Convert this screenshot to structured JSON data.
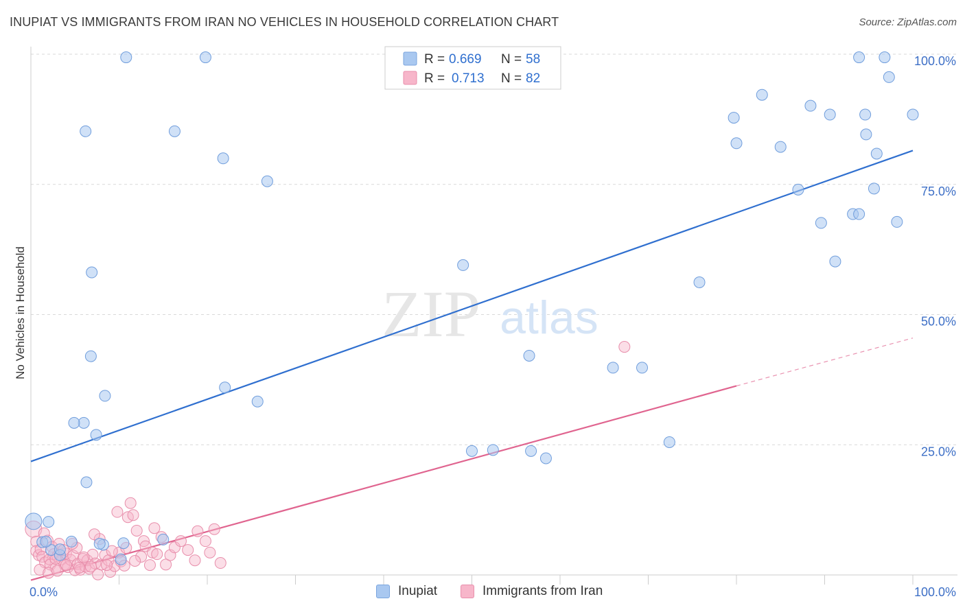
{
  "title": "INUPIAT VS IMMIGRANTS FROM IRAN NO VEHICLES IN HOUSEHOLD CORRELATION CHART",
  "source": "Source: ZipAtlas.com",
  "watermark": {
    "zip": "ZIP",
    "atlas": "atlas"
  },
  "colors": {
    "blue": "#2f6fcf",
    "blue_fill": "#a9c8f0",
    "pink": "#e0648f",
    "pink_fill": "#f7b6ca",
    "axis_label": "#3d6fc6",
    "grid": "#d8d8d8"
  },
  "legend_top": [
    {
      "r_label": "R =",
      "r_value": "0.669",
      "n_label": "N =",
      "n_value": "58"
    },
    {
      "r_label": "R =",
      "r_value": "0.713",
      "n_label": "N =",
      "n_value": "82"
    }
  ],
  "legend_bottom": [
    {
      "name": "Inupiat"
    },
    {
      "name": "Immigrants from Iran"
    }
  ],
  "chart_data": {
    "type": "scatter",
    "title": "INUPIAT VS IMMIGRANTS FROM IRAN NO VEHICLES IN HOUSEHOLD CORRELATION CHART",
    "xlabel": "",
    "ylabel": "No Vehicles in Household",
    "xlim": [
      0,
      100
    ],
    "ylim": [
      0,
      100
    ],
    "x_tick_labels": [
      "0.0%",
      "100.0%"
    ],
    "y_tick_labels": [
      "25.0%",
      "50.0%",
      "75.0%",
      "100.0%"
    ],
    "y_tick_values": [
      25,
      50,
      75,
      100
    ],
    "series": [
      {
        "name": "Inupiat",
        "r": 0.669,
        "n": 58,
        "trend": {
          "x0": 0,
          "y0": 21.8,
          "x1": 100,
          "y1": 81.5
        },
        "points": [
          [
            0.3,
            10.3
          ],
          [
            1.3,
            6.3
          ],
          [
            2.3,
            4.8
          ],
          [
            3.3,
            3.8
          ],
          [
            4.6,
            6.4
          ],
          [
            6.2,
            85.2
          ],
          [
            6.0,
            29.2
          ],
          [
            4.9,
            29.2
          ],
          [
            6.9,
            58.1
          ],
          [
            6.3,
            17.8
          ],
          [
            6.8,
            42.0
          ],
          [
            7.4,
            26.9
          ],
          [
            8.4,
            34.4
          ],
          [
            10.8,
            99.4
          ],
          [
            10.2,
            3.0
          ],
          [
            10.5,
            6.1
          ],
          [
            8.2,
            5.8
          ],
          [
            19.8,
            99.4
          ],
          [
            16.3,
            85.2
          ],
          [
            21.8,
            80.0
          ],
          [
            22.0,
            36.0
          ],
          [
            26.8,
            75.6
          ],
          [
            25.7,
            33.3
          ],
          [
            15.0,
            6.8
          ],
          [
            49.0,
            59.5
          ],
          [
            50.0,
            23.8
          ],
          [
            52.4,
            24.0
          ],
          [
            56.7,
            23.8
          ],
          [
            58.4,
            22.4
          ],
          [
            56.5,
            42.1
          ],
          [
            66.0,
            39.8
          ],
          [
            69.3,
            39.8
          ],
          [
            72.4,
            25.5
          ],
          [
            75.8,
            56.2
          ],
          [
            79.7,
            87.8
          ],
          [
            80.0,
            82.9
          ],
          [
            82.9,
            92.2
          ],
          [
            85.0,
            82.2
          ],
          [
            87.0,
            74.0
          ],
          [
            88.4,
            90.1
          ],
          [
            89.6,
            67.6
          ],
          [
            90.6,
            88.4
          ],
          [
            91.2,
            60.2
          ],
          [
            93.2,
            69.3
          ],
          [
            93.9,
            69.3
          ],
          [
            93.9,
            99.4
          ],
          [
            94.6,
            88.4
          ],
          [
            94.7,
            84.6
          ],
          [
            95.6,
            74.2
          ],
          [
            95.9,
            80.9
          ],
          [
            96.8,
            99.4
          ],
          [
            97.3,
            95.6
          ],
          [
            98.2,
            67.8
          ],
          [
            100.0,
            88.4
          ],
          [
            1.7,
            6.4
          ],
          [
            3.3,
            4.9
          ],
          [
            2.0,
            10.2
          ],
          [
            7.8,
            6.0
          ]
        ]
      },
      {
        "name": "Immigrants from Iran",
        "r": 0.713,
        "n": 82,
        "trend": {
          "x0": 0,
          "y0": -1.0,
          "x1": 80,
          "y1": 36.3
        },
        "trend_extension": {
          "x0": 80,
          "y0": 36.3,
          "x1": 100,
          "y1": 46.0
        },
        "points": [
          [
            0.3,
            8.8
          ],
          [
            0.6,
            6.4
          ],
          [
            0.6,
            4.6
          ],
          [
            0.9,
            3.8
          ],
          [
            1.1,
            4.9
          ],
          [
            1.3,
            3.5
          ],
          [
            1.6,
            2.4
          ],
          [
            1.9,
            6.6
          ],
          [
            2.1,
            3.0
          ],
          [
            2.2,
            2.0
          ],
          [
            2.4,
            5.4
          ],
          [
            2.6,
            4.0
          ],
          [
            2.8,
            1.3
          ],
          [
            3.0,
            3.6
          ],
          [
            3.2,
            6.0
          ],
          [
            3.5,
            3.0
          ],
          [
            3.8,
            2.0
          ],
          [
            4.0,
            4.1
          ],
          [
            4.2,
            1.5
          ],
          [
            4.5,
            2.9
          ],
          [
            4.8,
            3.7
          ],
          [
            5.0,
            0.9
          ],
          [
            5.2,
            5.2
          ],
          [
            5.3,
            2.1
          ],
          [
            5.6,
            1.0
          ],
          [
            5.9,
            3.1
          ],
          [
            6.2,
            1.6
          ],
          [
            6.4,
            2.8
          ],
          [
            6.6,
            1.2
          ],
          [
            7.0,
            3.9
          ],
          [
            7.3,
            2.2
          ],
          [
            7.6,
            0.1
          ],
          [
            7.8,
            6.9
          ],
          [
            8.0,
            2.0
          ],
          [
            8.4,
            3.8
          ],
          [
            8.8,
            2.8
          ],
          [
            9.0,
            0.6
          ],
          [
            9.5,
            1.7
          ],
          [
            9.8,
            12.1
          ],
          [
            10.0,
            4.3
          ],
          [
            10.2,
            2.6
          ],
          [
            10.6,
            1.8
          ],
          [
            11.0,
            11.1
          ],
          [
            11.3,
            13.8
          ],
          [
            11.6,
            11.5
          ],
          [
            12.0,
            8.5
          ],
          [
            12.5,
            3.5
          ],
          [
            12.8,
            6.5
          ],
          [
            13.0,
            5.5
          ],
          [
            13.8,
            4.3
          ],
          [
            14.3,
            4.0
          ],
          [
            14.8,
            7.3
          ],
          [
            15.3,
            2.0
          ],
          [
            15.8,
            3.8
          ],
          [
            16.3,
            5.3
          ],
          [
            17.0,
            6.5
          ],
          [
            17.8,
            4.8
          ],
          [
            18.6,
            2.8
          ],
          [
            18.9,
            8.4
          ],
          [
            19.8,
            6.5
          ],
          [
            20.3,
            4.3
          ],
          [
            20.8,
            8.8
          ],
          [
            21.5,
            2.3
          ],
          [
            1.0,
            1.0
          ],
          [
            2.0,
            0.4
          ],
          [
            3.0,
            0.8
          ],
          [
            4.0,
            1.9
          ],
          [
            5.5,
            1.4
          ],
          [
            6.8,
            1.6
          ],
          [
            8.6,
            1.9
          ],
          [
            11.8,
            2.7
          ],
          [
            13.5,
            1.9
          ],
          [
            3.7,
            4.8
          ],
          [
            6.0,
            3.4
          ],
          [
            9.2,
            4.6
          ],
          [
            10.8,
            5.2
          ],
          [
            2.8,
            3.1
          ],
          [
            1.5,
            8.0
          ],
          [
            4.7,
            6.0
          ],
          [
            7.2,
            7.8
          ],
          [
            14.0,
            9.0
          ],
          [
            67.3,
            43.8
          ]
        ]
      }
    ]
  }
}
